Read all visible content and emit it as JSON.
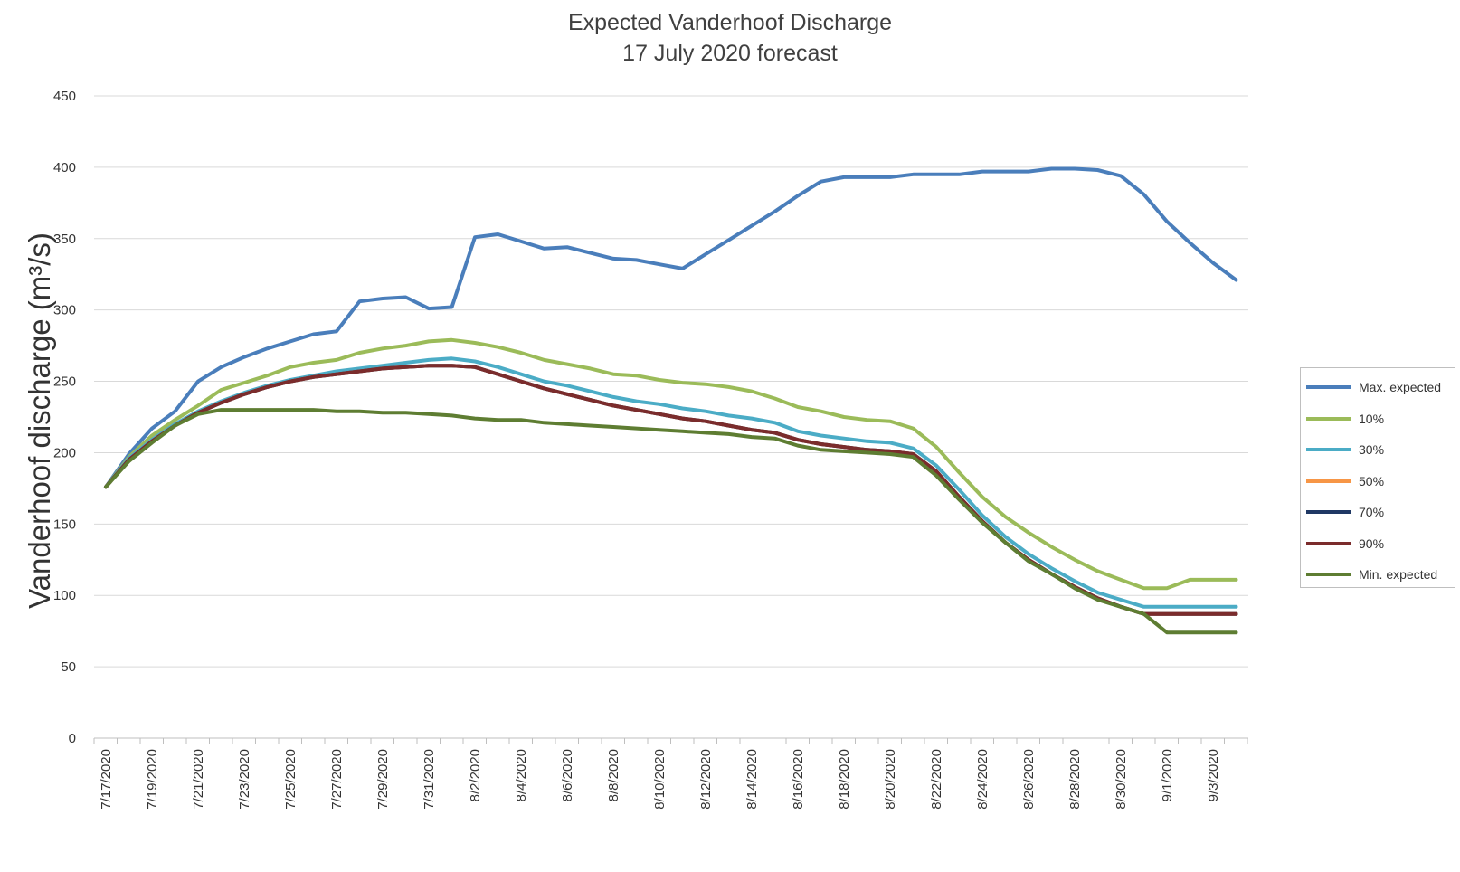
{
  "chart_data": {
    "type": "line",
    "title": "Expected Vanderhoof Discharge",
    "subtitle": "17 July 2020 forecast",
    "xlabel": "",
    "ylabel": "Vanderhoof discharge (m³/s)",
    "ylim": [
      0,
      450
    ],
    "yticks": [
      0,
      50,
      100,
      150,
      200,
      250,
      300,
      350,
      400,
      450
    ],
    "grid": true,
    "legend_position": "right",
    "x_tick_labels": [
      "7/17/2020",
      "7/19/2020",
      "7/21/2020",
      "7/23/2020",
      "7/25/2020",
      "7/27/2020",
      "7/29/2020",
      "7/31/2020",
      "8/2/2020",
      "8/4/2020",
      "8/6/2020",
      "8/8/2020",
      "8/10/2020",
      "8/12/2020",
      "8/14/2020",
      "8/16/2020",
      "8/18/2020",
      "8/20/2020",
      "8/22/2020",
      "8/24/2020",
      "8/26/2020",
      "8/28/2020",
      "8/30/2020",
      "9/1/2020",
      "9/3/2020"
    ],
    "x_start_date": "7/17/2020",
    "num_days": 50,
    "series": [
      {
        "name": "Max. expected",
        "color": "#4a7ebb",
        "values": [
          176,
          199,
          217,
          229,
          250,
          260,
          267,
          273,
          278,
          283,
          285,
          306,
          308,
          309,
          301,
          302,
          351,
          353,
          348,
          343,
          344,
          340,
          336,
          335,
          332,
          329,
          339,
          349,
          359,
          369,
          380,
          390,
          393,
          393,
          393,
          395,
          395,
          395,
          397,
          397,
          397,
          399,
          399,
          398,
          394,
          381,
          362,
          347,
          333,
          321
        ]
      },
      {
        "name": "10%",
        "color": "#9bbb59",
        "values": [
          176,
          197,
          212,
          223,
          233,
          244,
          249,
          254,
          260,
          263,
          265,
          270,
          273,
          275,
          278,
          279,
          277,
          274,
          270,
          265,
          262,
          259,
          255,
          254,
          251,
          249,
          248,
          246,
          243,
          238,
          232,
          229,
          225,
          223,
          222,
          217,
          204,
          186,
          169,
          155,
          144,
          134,
          125,
          117,
          111,
          105,
          105,
          111,
          111,
          111
        ]
      },
      {
        "name": "30%",
        "color": "#4bacc6",
        "values": [
          176,
          196,
          209,
          220,
          229,
          236,
          242,
          247,
          251,
          254,
          257,
          259,
          261,
          263,
          265,
          266,
          264,
          260,
          255,
          250,
          247,
          243,
          239,
          236,
          234,
          231,
          229,
          226,
          224,
          221,
          215,
          212,
          210,
          208,
          207,
          203,
          191,
          174,
          156,
          141,
          129,
          119,
          110,
          102,
          97,
          92,
          92,
          92,
          92,
          92
        ]
      },
      {
        "name": "50%",
        "color": "#f79646",
        "values": [
          176,
          195,
          208,
          219,
          228,
          235,
          241,
          246,
          250,
          253,
          255,
          257,
          259,
          260,
          261,
          261,
          260,
          255,
          250,
          245,
          241,
          237,
          233,
          230,
          227,
          224,
          222,
          219,
          216,
          214,
          209,
          206,
          204,
          202,
          201,
          199,
          187,
          169,
          152,
          137,
          125,
          115,
          106,
          98,
          92,
          87,
          87,
          87,
          87,
          87
        ]
      },
      {
        "name": "70%",
        "color": "#1f3864",
        "values": [
          176,
          195,
          208,
          219,
          228,
          235,
          241,
          246,
          250,
          253,
          255,
          257,
          259,
          260,
          261,
          261,
          260,
          255,
          250,
          245,
          241,
          237,
          233,
          230,
          227,
          224,
          222,
          219,
          216,
          214,
          209,
          206,
          204,
          202,
          201,
          199,
          187,
          169,
          152,
          137,
          125,
          115,
          106,
          98,
          92,
          87,
          87,
          87,
          87,
          87
        ]
      },
      {
        "name": "90%",
        "color": "#7b2c2c",
        "values": [
          176,
          195,
          208,
          219,
          228,
          235,
          241,
          246,
          250,
          253,
          255,
          257,
          259,
          260,
          261,
          261,
          260,
          255,
          250,
          245,
          241,
          237,
          233,
          230,
          227,
          224,
          222,
          219,
          216,
          214,
          209,
          206,
          204,
          202,
          201,
          199,
          187,
          169,
          152,
          137,
          125,
          115,
          106,
          98,
          92,
          87,
          87,
          87,
          87,
          87
        ]
      },
      {
        "name": "Min. expected",
        "color": "#5e7d32",
        "values": [
          176,
          194,
          207,
          219,
          227,
          230,
          230,
          230,
          230,
          230,
          229,
          229,
          228,
          228,
          227,
          226,
          224,
          223,
          223,
          221,
          220,
          219,
          218,
          217,
          216,
          215,
          214,
          213,
          211,
          210,
          205,
          202,
          201,
          200,
          199,
          197,
          184,
          167,
          151,
          137,
          124,
          115,
          105,
          97,
          92,
          87,
          74,
          74,
          74,
          74
        ]
      }
    ]
  }
}
